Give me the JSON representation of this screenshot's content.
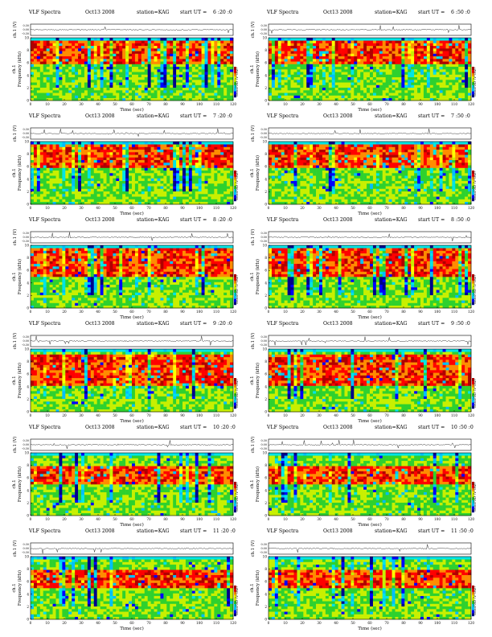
{
  "title_prefix": "VLF Spectra",
  "station": "station=KAG",
  "start_prefix": "start  UT =",
  "labels": {
    "ch_label": "ch.1 (V)",
    "freq_label": "Frequency (kHz)",
    "freq_ch": "ch.1",
    "colorbar_label": "log₁₀PSD (V²/Hz)",
    "time_label": "Time (sec)"
  },
  "colors": {
    "scale": [
      "#00008b",
      "#0000ff",
      "#00bfff",
      "#00e5e5",
      "#2ed12e",
      "#c8f000",
      "#ffff00",
      "#ff8c00",
      "#ff0000",
      "#b00000"
    ]
  },
  "chart_data": [
    {
      "type": "heatmap",
      "title": "VLF Spectra",
      "date": "Oct13 2008",
      "station": "station=KAG",
      "start_ut": "6 :20 :0",
      "xlabel": "Time (sec)",
      "ylabel": "Frequency (kHz)",
      "xlim": [
        0,
        120
      ],
      "ylim": [
        0,
        10
      ],
      "x_ticks": [
        0,
        10,
        20,
        30,
        40,
        50,
        60,
        70,
        80,
        90,
        100,
        110,
        120
      ],
      "y_ticks": [
        0,
        2,
        4,
        6,
        8,
        10
      ],
      "waveform": {
        "ylabel": "ch.1 (V)",
        "y_ticks": [
          "0.30",
          "0.00",
          "-0.30"
        ]
      },
      "intensity_band_khz": [
        6,
        9.5
      ]
    },
    {
      "type": "heatmap",
      "title": "VLF Spectra",
      "date": "Oct13 2008",
      "station": "station=KAG",
      "start_ut": "6 :50 :0",
      "xlabel": "Time (sec)",
      "ylabel": "Frequency (kHz)",
      "xlim": [
        0,
        120
      ],
      "ylim": [
        0,
        10
      ],
      "x_ticks": [
        0,
        10,
        20,
        30,
        40,
        50,
        60,
        70,
        80,
        90,
        100,
        110,
        120
      ],
      "y_ticks": [
        0,
        2,
        4,
        6,
        8,
        10
      ],
      "waveform": {
        "ylabel": "ch.1 (V)",
        "y_ticks": [
          "0.30",
          "0.00",
          "-0.30"
        ]
      },
      "intensity_band_khz": [
        6,
        9.5
      ]
    },
    {
      "type": "heatmap",
      "title": "VLF Spectra",
      "date": "Oct13 2008",
      "station": "station=KAG",
      "start_ut": "7 :20 :0",
      "xlabel": "Time (sec)",
      "ylabel": "Frequency (kHz)",
      "xlim": [
        0,
        120
      ],
      "ylim": [
        0,
        10
      ],
      "x_ticks": [
        0,
        10,
        20,
        30,
        40,
        50,
        60,
        70,
        80,
        90,
        100,
        110,
        120
      ],
      "y_ticks": [
        0,
        2,
        4,
        6,
        8,
        10
      ],
      "waveform": {
        "ylabel": "ch.1 (V)",
        "y_ticks": [
          "0.30",
          "0.00",
          "-0.30"
        ]
      },
      "intensity_band_khz": [
        6,
        9.5
      ]
    },
    {
      "type": "heatmap",
      "title": "VLF Spectra",
      "date": "Oct13 2008",
      "station": "station=KAG",
      "start_ut": "7 :50 :0",
      "xlabel": "Time (sec)",
      "ylabel": "Frequency (kHz)",
      "xlim": [
        0,
        120
      ],
      "ylim": [
        0,
        10
      ],
      "x_ticks": [
        0,
        10,
        20,
        30,
        40,
        50,
        60,
        70,
        80,
        90,
        100,
        110,
        120
      ],
      "y_ticks": [
        0,
        2,
        4,
        6,
        8,
        10
      ],
      "waveform": {
        "ylabel": "ch.1 (V)",
        "y_ticks": [
          "0.30",
          "0.00",
          "-0.30"
        ]
      },
      "intensity_band_khz": [
        6,
        9.5
      ]
    },
    {
      "type": "heatmap",
      "title": "VLF Spectra",
      "date": "Oct13 2008",
      "station": "station=KAG",
      "start_ut": "8 :20 :0",
      "xlabel": "Time (sec)",
      "ylabel": "Frequency (kHz)",
      "xlim": [
        0,
        120
      ],
      "ylim": [
        0,
        10
      ],
      "x_ticks": [
        0,
        10,
        20,
        30,
        40,
        50,
        60,
        70,
        80,
        90,
        100,
        110,
        120
      ],
      "y_ticks": [
        0,
        2,
        4,
        6,
        8,
        10
      ],
      "waveform": {
        "ylabel": "ch.1 (V)",
        "y_ticks": [
          "0.30",
          "0.00",
          "-0.30"
        ]
      },
      "intensity_band_khz": [
        5,
        9.5
      ]
    },
    {
      "type": "heatmap",
      "title": "VLF Spectra",
      "date": "Oct13 2008",
      "station": "station=KAG",
      "start_ut": "8 :50 :0",
      "xlabel": "Time (sec)",
      "ylabel": "Frequency (kHz)",
      "xlim": [
        0,
        120
      ],
      "ylim": [
        0,
        10
      ],
      "x_ticks": [
        0,
        10,
        20,
        30,
        40,
        50,
        60,
        70,
        80,
        90,
        100,
        110,
        120
      ],
      "y_ticks": [
        0,
        2,
        4,
        6,
        8,
        10
      ],
      "waveform": {
        "ylabel": "ch.1 (V)",
        "y_ticks": [
          "0.30",
          "0.00",
          "-0.30"
        ]
      },
      "intensity_band_khz": [
        5,
        9.5
      ]
    },
    {
      "type": "heatmap",
      "title": "VLF Spectra",
      "date": "Oct13 2008",
      "station": "station=KAG",
      "start_ut": "9 :20 :0",
      "xlabel": "Time (sec)",
      "ylabel": "Frequency (kHz)",
      "xlim": [
        0,
        120
      ],
      "ylim": [
        0,
        10
      ],
      "x_ticks": [
        0,
        10,
        20,
        30,
        40,
        50,
        60,
        70,
        80,
        90,
        100,
        110,
        120
      ],
      "y_ticks": [
        0,
        2,
        4,
        6,
        8,
        10
      ],
      "waveform": {
        "ylabel": "ch.1 (V)",
        "y_ticks": [
          "0.30",
          "0.00",
          "-0.30"
        ]
      },
      "intensity_band_khz": [
        4,
        9
      ]
    },
    {
      "type": "heatmap",
      "title": "VLF Spectra",
      "date": "Oct13 2008",
      "station": "station=KAG",
      "start_ut": "9 :50 :0",
      "xlabel": "Time (sec)",
      "ylabel": "Frequency (kHz)",
      "xlim": [
        0,
        120
      ],
      "ylim": [
        0,
        10
      ],
      "x_ticks": [
        0,
        10,
        20,
        30,
        40,
        50,
        60,
        70,
        80,
        90,
        100,
        110,
        120
      ],
      "y_ticks": [
        0,
        2,
        4,
        6,
        8,
        10
      ],
      "waveform": {
        "ylabel": "ch.1 (V)",
        "y_ticks": [
          "0.30",
          "0.00",
          "-0.30"
        ]
      },
      "intensity_band_khz": [
        4,
        9
      ]
    },
    {
      "type": "heatmap",
      "title": "VLF Spectra",
      "date": "Oct13 2008",
      "station": "station=KAG",
      "start_ut": "10 :20 :0",
      "xlabel": "Time (sec)",
      "ylabel": "Frequency (kHz)",
      "xlim": [
        0,
        120
      ],
      "ylim": [
        0,
        10
      ],
      "x_ticks": [
        0,
        10,
        20,
        30,
        40,
        50,
        60,
        70,
        80,
        90,
        100,
        110,
        120
      ],
      "y_ticks": [
        0,
        2,
        4,
        6,
        8,
        10
      ],
      "waveform": {
        "ylabel": "ch.1 (V)",
        "y_ticks": [
          "0.30",
          "0.00",
          "-0.30"
        ]
      },
      "intensity_band_khz": [
        5,
        8
      ]
    },
    {
      "type": "heatmap",
      "title": "VLF Spectra",
      "date": "Oct13 2008",
      "station": "station=KAG",
      "start_ut": "10 :50 :0",
      "xlabel": "Time (sec)",
      "ylabel": "Frequency (kHz)",
      "xlim": [
        0,
        120
      ],
      "ylim": [
        0,
        10
      ],
      "x_ticks": [
        0,
        10,
        20,
        30,
        40,
        50,
        60,
        70,
        80,
        90,
        100,
        110,
        120
      ],
      "y_ticks": [
        0,
        2,
        4,
        6,
        8,
        10
      ],
      "waveform": {
        "ylabel": "ch.1 (V)",
        "y_ticks": [
          "0.30",
          "0.00",
          "-0.30"
        ]
      },
      "intensity_band_khz": [
        5,
        8
      ]
    },
    {
      "type": "heatmap",
      "title": "VLF Spectra",
      "date": "Oct13 2008",
      "station": "station=KAG",
      "start_ut": "11 :20 :0",
      "xlabel": "Time (sec)",
      "ylabel": "Frequency (kHz)",
      "xlim": [
        0,
        120
      ],
      "ylim": [
        0,
        10
      ],
      "x_ticks": [
        0,
        10,
        20,
        30,
        40,
        50,
        60,
        70,
        80,
        90,
        100,
        110,
        120
      ],
      "y_ticks": [
        0,
        2,
        4,
        6,
        8,
        10
      ],
      "waveform": {
        "ylabel": "ch.1 (V)",
        "y_ticks": [
          "0.30",
          "0.00",
          "-0.30"
        ]
      },
      "intensity_band_khz": [
        5,
        8
      ]
    },
    {
      "type": "heatmap",
      "title": "VLF Spectra",
      "date": "Oct13 2008",
      "station": "station=KAG",
      "start_ut": "11 :50 :0",
      "xlabel": "Time (sec)",
      "ylabel": "Frequency (kHz)",
      "xlim": [
        0,
        120
      ],
      "ylim": [
        0,
        10
      ],
      "x_ticks": [
        0,
        10,
        20,
        30,
        40,
        50,
        60,
        70,
        80,
        90,
        100,
        110,
        120
      ],
      "y_ticks": [
        0,
        2,
        4,
        6,
        8,
        10
      ],
      "waveform": {
        "ylabel": "ch.1 (V)",
        "y_ticks": [
          "0.30",
          "0.00",
          "-0.30"
        ]
      },
      "intensity_band_khz": [
        5,
        8
      ]
    }
  ]
}
